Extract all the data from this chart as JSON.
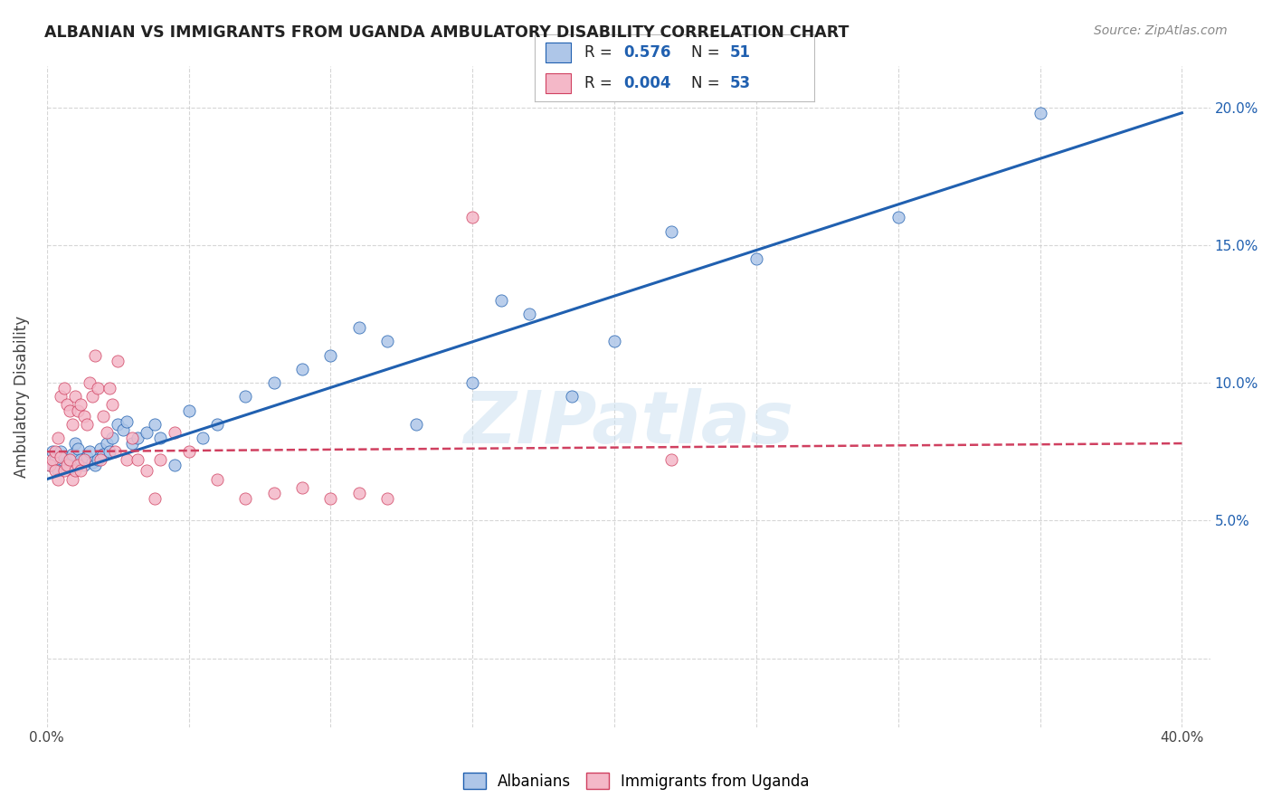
{
  "title": "ALBANIAN VS IMMIGRANTS FROM UGANDA AMBULATORY DISABILITY CORRELATION CHART",
  "source": "Source: ZipAtlas.com",
  "ylabel": "Ambulatory Disability",
  "xlim": [
    0.0,
    0.41
  ],
  "ylim": [
    -0.025,
    0.215
  ],
  "albanians_R": 0.576,
  "albanians_N": 51,
  "uganda_R": 0.004,
  "uganda_N": 53,
  "albanians_color": "#aec6e8",
  "uganda_color": "#f4b8c8",
  "trendline_albanian_color": "#2060b0",
  "trendline_uganda_color": "#d04060",
  "background_color": "#ffffff",
  "grid_color": "#cccccc",
  "watermark_text": "ZIPatlas",
  "albanians_x": [
    0.001,
    0.002,
    0.003,
    0.004,
    0.005,
    0.006,
    0.007,
    0.008,
    0.009,
    0.01,
    0.011,
    0.012,
    0.013,
    0.014,
    0.015,
    0.016,
    0.017,
    0.018,
    0.019,
    0.02,
    0.021,
    0.022,
    0.023,
    0.025,
    0.027,
    0.028,
    0.03,
    0.032,
    0.035,
    0.038,
    0.04,
    0.045,
    0.05,
    0.055,
    0.06,
    0.07,
    0.08,
    0.09,
    0.1,
    0.11,
    0.12,
    0.13,
    0.15,
    0.16,
    0.17,
    0.185,
    0.2,
    0.22,
    0.25,
    0.3,
    0.35
  ],
  "albanians_y": [
    0.07,
    0.075,
    0.072,
    0.068,
    0.075,
    0.073,
    0.071,
    0.069,
    0.074,
    0.078,
    0.076,
    0.072,
    0.07,
    0.073,
    0.075,
    0.071,
    0.07,
    0.072,
    0.076,
    0.074,
    0.078,
    0.075,
    0.08,
    0.085,
    0.083,
    0.086,
    0.078,
    0.08,
    0.082,
    0.085,
    0.08,
    0.07,
    0.09,
    0.08,
    0.085,
    0.095,
    0.1,
    0.105,
    0.11,
    0.12,
    0.115,
    0.085,
    0.1,
    0.13,
    0.125,
    0.095,
    0.115,
    0.155,
    0.145,
    0.16,
    0.198
  ],
  "uganda_x": [
    0.001,
    0.002,
    0.003,
    0.003,
    0.004,
    0.004,
    0.005,
    0.005,
    0.006,
    0.006,
    0.007,
    0.007,
    0.008,
    0.008,
    0.009,
    0.009,
    0.01,
    0.01,
    0.011,
    0.011,
    0.012,
    0.012,
    0.013,
    0.013,
    0.014,
    0.015,
    0.016,
    0.017,
    0.018,
    0.019,
    0.02,
    0.021,
    0.022,
    0.023,
    0.024,
    0.025,
    0.028,
    0.03,
    0.032,
    0.035,
    0.038,
    0.04,
    0.045,
    0.05,
    0.06,
    0.07,
    0.08,
    0.09,
    0.1,
    0.11,
    0.12,
    0.15,
    0.22
  ],
  "uganda_y": [
    0.07,
    0.072,
    0.075,
    0.068,
    0.08,
    0.065,
    0.095,
    0.073,
    0.098,
    0.068,
    0.092,
    0.07,
    0.09,
    0.072,
    0.085,
    0.065,
    0.095,
    0.068,
    0.09,
    0.07,
    0.092,
    0.068,
    0.088,
    0.072,
    0.085,
    0.1,
    0.095,
    0.11,
    0.098,
    0.072,
    0.088,
    0.082,
    0.098,
    0.092,
    0.075,
    0.108,
    0.072,
    0.08,
    0.072,
    0.068,
    0.058,
    0.072,
    0.082,
    0.075,
    0.065,
    0.058,
    0.06,
    0.062,
    0.058,
    0.06,
    0.058,
    0.16,
    0.072
  ],
  "legend_label_albanian": "Albanians",
  "legend_label_uganda": "Immigrants from Uganda",
  "trendline_alb_x0": 0.0,
  "trendline_alb_y0": 0.065,
  "trendline_alb_x1": 0.4,
  "trendline_alb_y1": 0.198,
  "trendline_uga_x0": 0.0,
  "trendline_uga_y0": 0.075,
  "trendline_uga_x1": 0.4,
  "trendline_uga_y1": 0.078
}
